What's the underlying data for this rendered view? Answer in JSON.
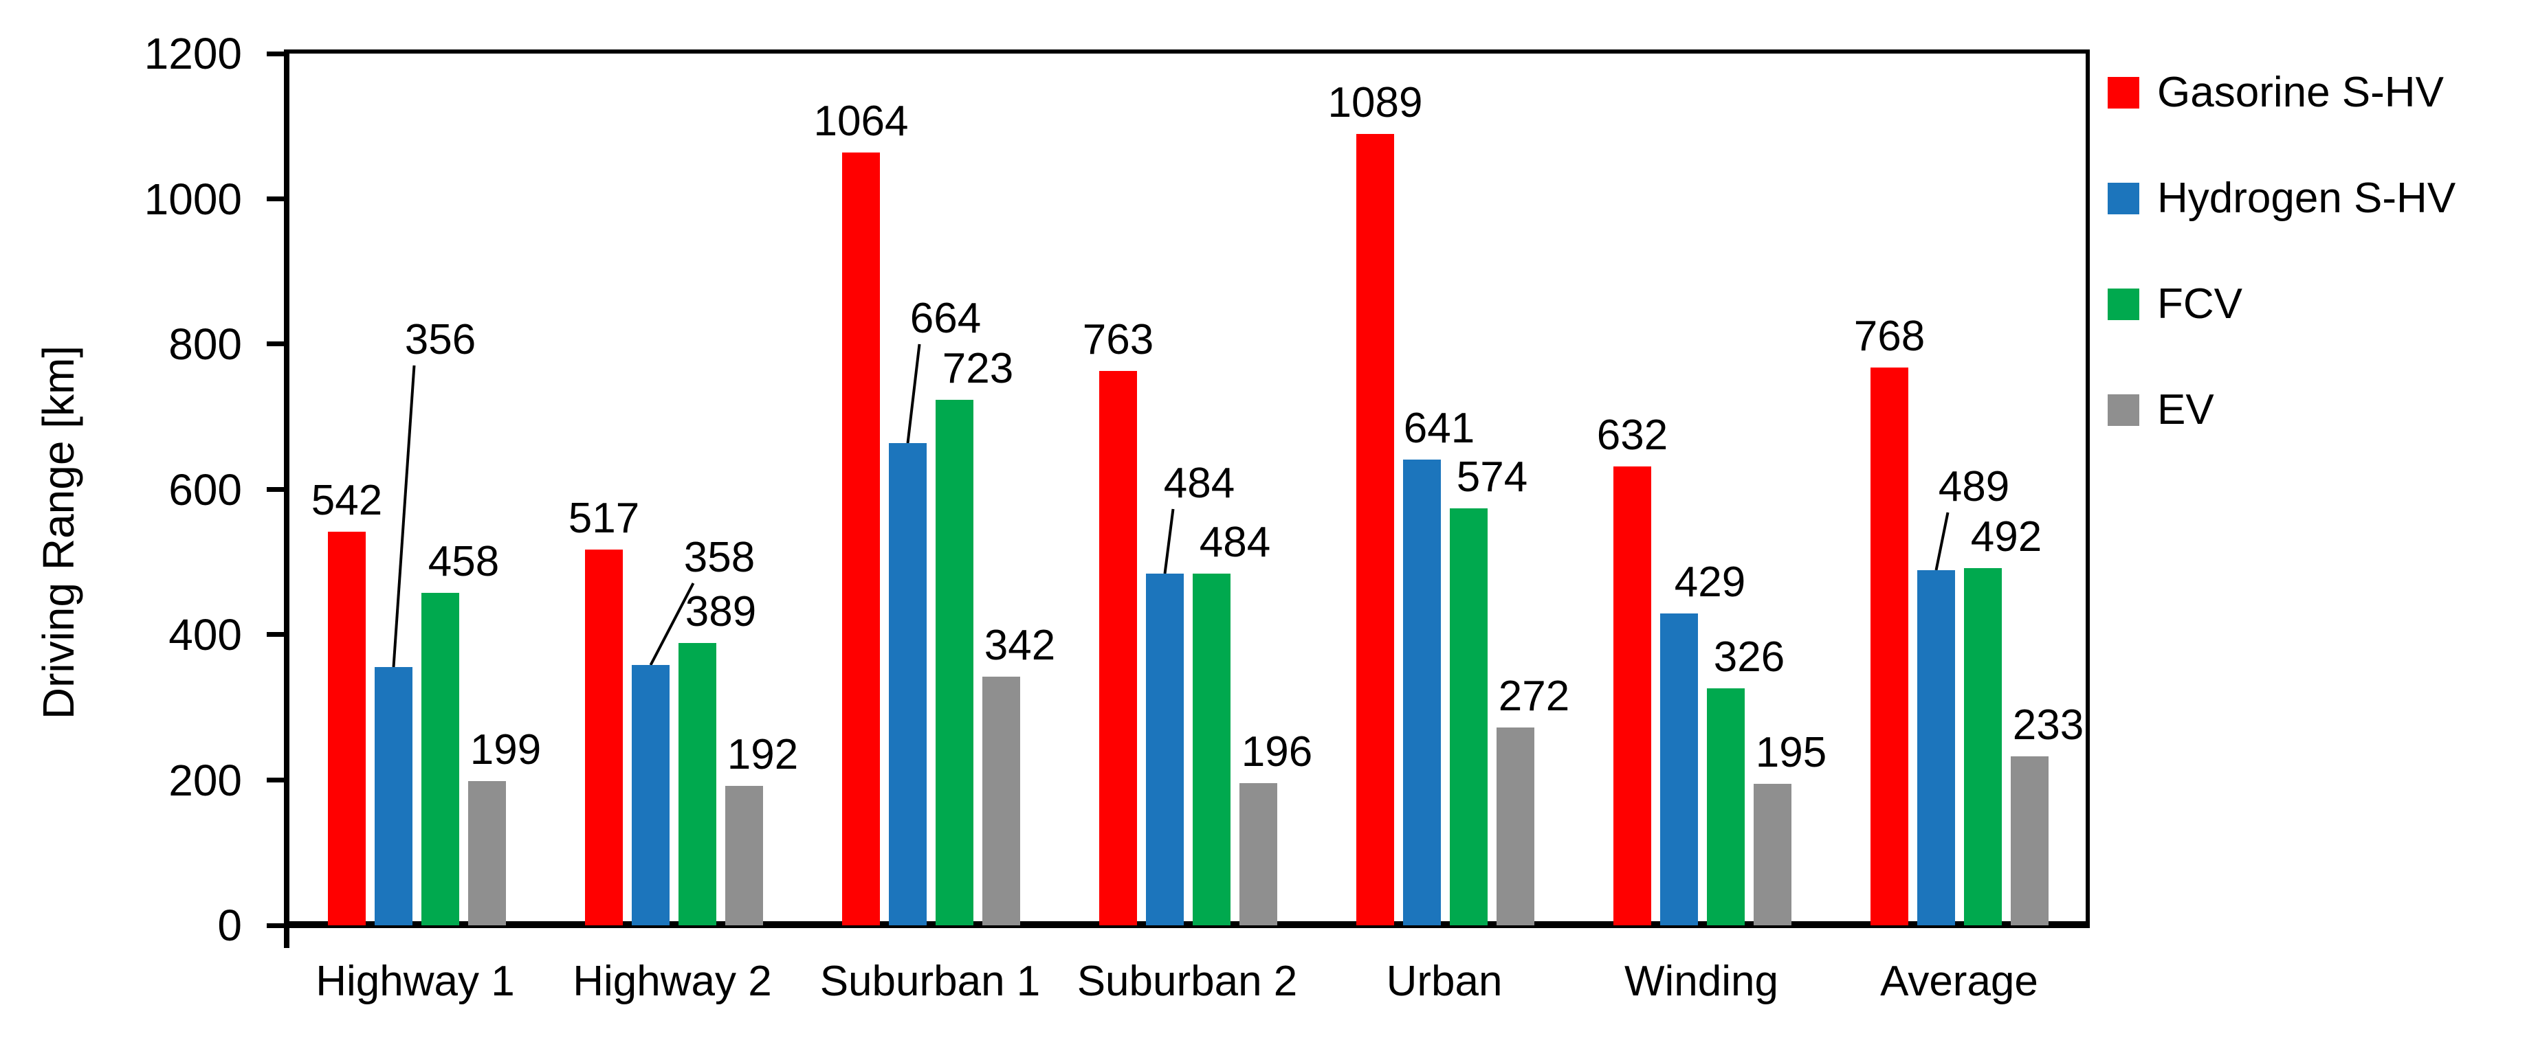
{
  "figure": {
    "background": "#FFFFFF",
    "axis_color": "#000000"
  },
  "y_axis": {
    "title": "Driving Range [km]",
    "tick_labels": [
      "1200",
      "1000",
      "800",
      "600",
      "400",
      "200",
      "0"
    ]
  },
  "chart_data": {
    "type": "bar",
    "title": "",
    "xlabel": "",
    "ylabel": "Driving Range [km]",
    "ylim": [
      0,
      1200
    ],
    "ytick_interval": 200,
    "grid": false,
    "data_labels": true,
    "legend_position": "right",
    "categories": [
      "Highway 1",
      "Highway 2",
      "Suburban 1",
      "Suburban 2",
      "Urban",
      "Winding",
      "Average"
    ],
    "series": [
      {
        "name": "Gasorine S-HV",
        "color": "#FF0000",
        "values": [
          542,
          517,
          1064,
          763,
          1089,
          632,
          768
        ]
      },
      {
        "name": "Hydrogen S-HV",
        "color": "#1C75BC",
        "values": [
          356,
          358,
          664,
          484,
          641,
          429,
          489
        ]
      },
      {
        "name": "FCV",
        "color": "#00A94E",
        "values": [
          458,
          389,
          723,
          484,
          574,
          326,
          492
        ]
      },
      {
        "name": "EV",
        "color": "#8F8F8F",
        "values": [
          199,
          192,
          342,
          196,
          272,
          195,
          233
        ]
      }
    ]
  }
}
